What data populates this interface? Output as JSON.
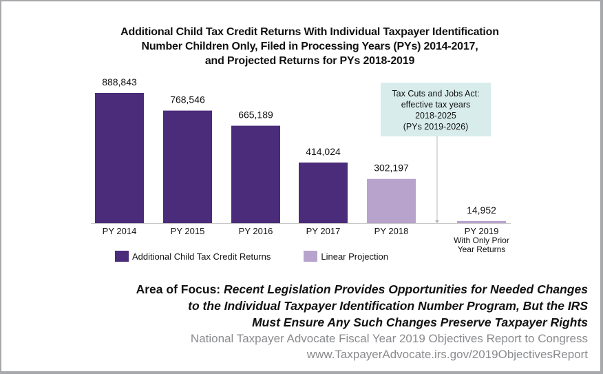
{
  "chart_data": {
    "type": "bar",
    "title": "Additional Child Tax Credit Returns With Individual Taxpayer Identification Number Children Only, Filed in Processing Years (PYs) 2014-2017, and Projected Returns for PYs 2018-2019",
    "title_lines": [
      "Additional Child Tax Credit Returns With Individual Taxpayer Identification",
      "Number Children Only, Filed in Processing Years (PYs) 2014-2017,",
      "and Projected Returns for PYs 2018-2019"
    ],
    "categories": [
      "PY 2014",
      "PY 2015",
      "PY 2016",
      "PY 2017",
      "PY 2018",
      "PY 2019"
    ],
    "category_label_lines": [
      [
        "PY 2014"
      ],
      [
        "PY 2015"
      ],
      [
        "PY 2016"
      ],
      [
        "PY 2017"
      ],
      [
        "PY 2018"
      ],
      [
        "PY 2019",
        "With Only Prior",
        "Year Returns"
      ]
    ],
    "values": [
      888843,
      768546,
      665189,
      414024,
      302197,
      14952
    ],
    "value_labels": [
      "888,843",
      "768,546",
      "665,189",
      "414,024",
      "302,197",
      "14,952"
    ],
    "series_type": [
      "actual",
      "actual",
      "actual",
      "actual",
      "projection",
      "projection"
    ],
    "series": [
      {
        "name": "Additional Child Tax Credit Returns",
        "color": "#4b2c7a"
      },
      {
        "name": "Linear Projection",
        "color": "#b8a3cc"
      }
    ],
    "xlabel": "",
    "ylabel": "",
    "ylim": [
      0,
      888843
    ],
    "grid": false,
    "legend_position": "bottom-left",
    "annotation": {
      "lines": [
        "Tax Cuts and Jobs Act:",
        "effective tax years",
        "2018-2025",
        "(PYs 2019-2026)"
      ],
      "points_between": [
        "PY 2018",
        "PY 2019"
      ],
      "background": "#d8ecec"
    }
  },
  "footer": {
    "focus_lead": "Area of Focus:",
    "focus_lines": [
      "Recent Legislation Provides Opportunities for Needed Changes",
      "to the Individual Taxpayer Identification Number Program, But the IRS",
      "Must Ensure Any Such Changes Preserve Taxpayer Rights"
    ],
    "report_name": "National Taxpayer Advocate Fiscal Year 2019 Objectives Report to Congress",
    "report_url": "www.TaxpayerAdvocate.irs.gov/2019ObjectivesReport"
  }
}
